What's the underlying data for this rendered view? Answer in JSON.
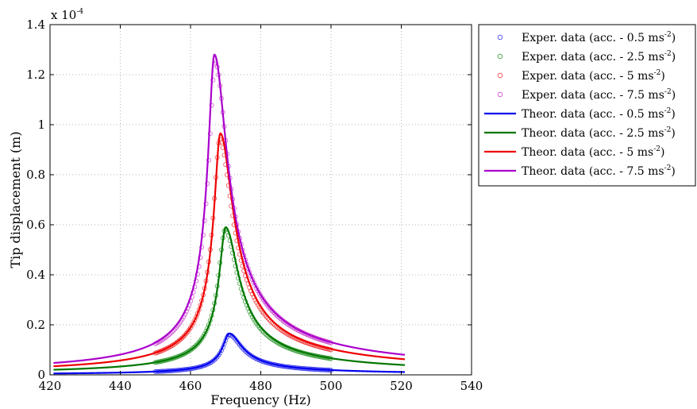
{
  "chart_data": {
    "type": "line",
    "xlabel": "Frequency (Hz)",
    "ylabel": "Tip displacement (m)",
    "y_exponent": "x 10",
    "y_exponent_power": "-4",
    "xlim": [
      420,
      540
    ],
    "ylim": [
      0,
      1.4
    ],
    "xticks": [
      "420",
      "440",
      "460",
      "480",
      "500",
      "520",
      "540"
    ],
    "yticks": [
      "0",
      "0.2",
      "0.4",
      "0.6",
      "0.8",
      "1",
      "1.2",
      "1.4"
    ],
    "grid": true,
    "legend_position": "outside-right",
    "series": [
      {
        "name": "Exper. data (acc. - 0.5 ms",
        "sup": "-2",
        "suffix": ")",
        "kind": "scatter",
        "color": "#3a3aee",
        "fr": 471.0,
        "peak": 0.16,
        "x_range": [
          450,
          500
        ]
      },
      {
        "name": "Exper. data (acc. - 2.5 ms",
        "sup": "-2",
        "suffix": ")",
        "kind": "scatter",
        "color": "#2f9a2f",
        "fr": 469.8,
        "peak": 0.58,
        "x_range": [
          450,
          500
        ]
      },
      {
        "name": "Exper. data (acc. - 5 ms",
        "sup": "-2",
        "suffix": ")",
        "kind": "scatter",
        "color": "#ee3a3a",
        "fr": 468.3,
        "peak": 0.94,
        "x_range": [
          450,
          500
        ]
      },
      {
        "name": "Exper. data (acc. - 7.5 ms",
        "sup": "-2",
        "suffix": ")",
        "kind": "scatter",
        "color": "#cc44cc",
        "fr": 467.0,
        "peak": 1.25,
        "x_range": [
          450,
          500
        ]
      },
      {
        "name": "Theor. data (acc. - 0.5 ms",
        "sup": "-2",
        "suffix": ")",
        "kind": "line",
        "color": "#0000ee",
        "fr": 471.0,
        "peak": 0.165,
        "x_range": [
          421,
          521
        ]
      },
      {
        "name": "Theor. data (acc. - 2.5 ms",
        "sup": "-2",
        "suffix": ")",
        "kind": "line",
        "color": "#007700",
        "fr": 470.0,
        "peak": 0.59,
        "x_range": [
          421,
          521
        ]
      },
      {
        "name": "Theor. data (acc. - 5 ms",
        "sup": "-2",
        "suffix": ")",
        "kind": "line",
        "color": "#ee0000",
        "fr": 468.5,
        "peak": 0.965,
        "x_range": [
          421,
          521
        ]
      },
      {
        "name": "Theor. data (acc. - 7.5 ms",
        "sup": "-2",
        "suffix": ")",
        "kind": "line",
        "color": "#aa00cc",
        "fr": 466.8,
        "peak": 1.28,
        "x_range": [
          421,
          521
        ]
      }
    ]
  }
}
